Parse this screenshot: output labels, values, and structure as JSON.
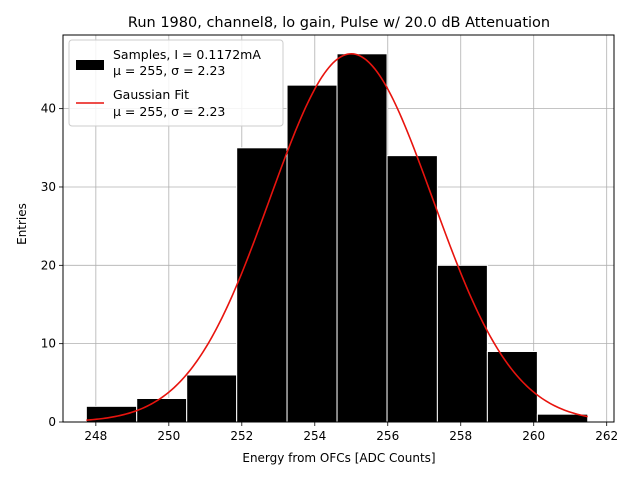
{
  "chart_data": {
    "type": "bar",
    "title": "Run 1980, channel8, lo gain, Pulse w/ 20.0 dB Attenuation",
    "xlabel": "Energy from OFCs [ADC Counts]",
    "ylabel": "Entries",
    "xlim": [
      247.1,
      262.2
    ],
    "ylim": [
      0,
      49.4
    ],
    "xticks": [
      248,
      250,
      252,
      254,
      256,
      258,
      260,
      262
    ],
    "yticks": [
      0,
      10,
      20,
      30,
      40
    ],
    "grid": true,
    "histogram": {
      "bin_edges": [
        247.74,
        249.12,
        250.49,
        251.86,
        253.24,
        254.61,
        255.98,
        257.36,
        258.73,
        260.1,
        261.48
      ],
      "counts": [
        2,
        3,
        6,
        35,
        43,
        47,
        34,
        20,
        9,
        1
      ],
      "color": "#000000",
      "edgecolor": "#ffffff"
    },
    "fit": {
      "type": "gaussian",
      "mu": 255.0,
      "sigma": 2.23,
      "amplitude": 47.0,
      "x_range": [
        247.74,
        261.48
      ],
      "color": "#e8140e"
    },
    "legend": {
      "position": "top-left",
      "entries": [
        {
          "id": "samples",
          "line1": "Samples, I = 0.1172mA",
          "line2": "μ = 255, σ = 2.23"
        },
        {
          "id": "fit",
          "line1": "Gaussian Fit",
          "line2": "μ = 255, σ = 2.23"
        }
      ]
    }
  }
}
